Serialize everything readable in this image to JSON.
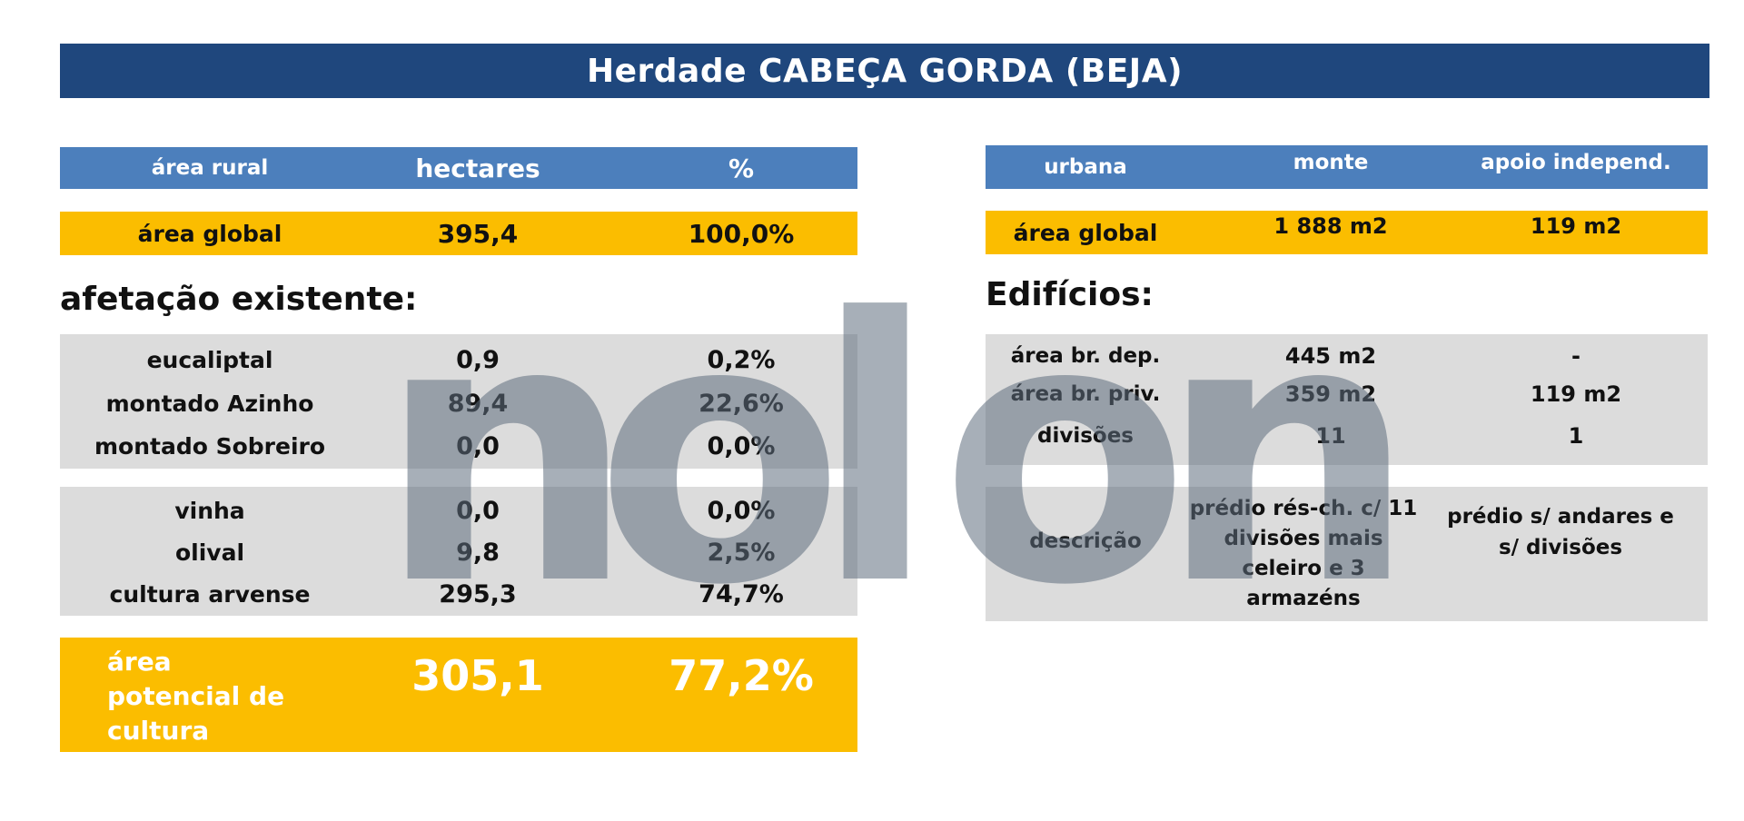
{
  "title": "Herdade CABEÇA GORDA (BEJA)",
  "rural": {
    "header": [
      "área rural",
      "hectares",
      "%"
    ],
    "global": {
      "label": "área global",
      "hectares": "395,4",
      "pct": "100,0%"
    },
    "section_title": "afetação existente:",
    "group1": [
      {
        "label": "eucaliptal",
        "hectares": "0,9",
        "pct": "0,2%"
      },
      {
        "label": "montado Azinho",
        "hectares": "89,4",
        "pct": "22,6%"
      },
      {
        "label": "montado Sobreiro",
        "hectares": "0,0",
        "pct": "0,0%"
      }
    ],
    "group2": [
      {
        "label": "vinha",
        "hectares": "0,0",
        "pct": "0,0%"
      },
      {
        "label": "olival",
        "hectares": "9,8",
        "pct": "2,5%"
      },
      {
        "label": "cultura arvense",
        "hectares": "295,3",
        "pct": "74,7%"
      }
    ],
    "potential": {
      "label": "área potencial de cultura",
      "hectares": "305,1",
      "pct": "77,2%"
    }
  },
  "urban": {
    "header": [
      "urbana",
      "monte",
      "apoio independ."
    ],
    "global": {
      "label": "área global",
      "monte": "1 888 m2",
      "apoio": "119 m2"
    },
    "section_title": "Edifícios:",
    "rows": [
      {
        "label": "área br. dep.",
        "monte": "445 m2",
        "apoio": "-"
      },
      {
        "label": "área br. priv.",
        "monte": "359 m2",
        "apoio": "119 m2"
      },
      {
        "label": "divisões",
        "monte": "11",
        "apoio": "1"
      }
    ],
    "descricao": {
      "label": "descrição",
      "monte": "prédio rés-ch. c/ 11 divisões mais celeiro e 3 armazéns",
      "apoio": "prédio s/ andares e s/ divisões"
    }
  },
  "watermark": "nolon",
  "colors": {
    "title_bar": "#1f477d",
    "header_blue": "#4c7fbc",
    "highlight_yellow": "#fbbd00",
    "row_grey": "#dcdcdc",
    "potential_text": "#ffffff",
    "watermark": "#5f6e7d"
  }
}
